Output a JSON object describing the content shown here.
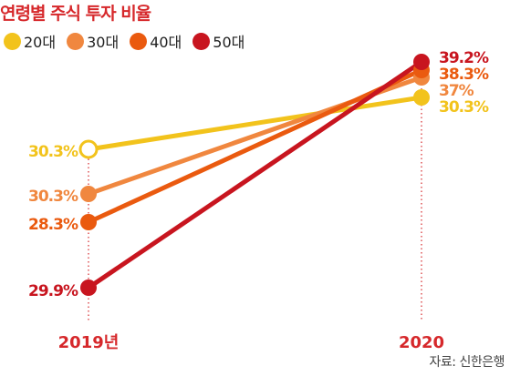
{
  "chart_data": {
    "type": "line",
    "title": "연령별 주식 투자 비율",
    "categories": [
      "2019년",
      "2020"
    ],
    "series": [
      {
        "name": "20대",
        "values": [
          30.3,
          30.3
        ],
        "labels": [
          "30.3%",
          "30.3%"
        ],
        "color": "#f2c31c"
      },
      {
        "name": "30대",
        "values": [
          30.3,
          37
        ],
        "labels": [
          "30.3%",
          "37%"
        ],
        "color": "#f0873f"
      },
      {
        "name": "40대",
        "values": [
          28.3,
          38.3
        ],
        "labels": [
          "28.3%",
          "38.3%"
        ],
        "color": "#ea5a0f"
      },
      {
        "name": "50대",
        "values": [
          29.9,
          39.2
        ],
        "labels": [
          "29.9%",
          "39.2%"
        ],
        "color": "#c8151f"
      }
    ],
    "source": "자료: 신한은행",
    "grid": false,
    "legend": "top-left"
  }
}
